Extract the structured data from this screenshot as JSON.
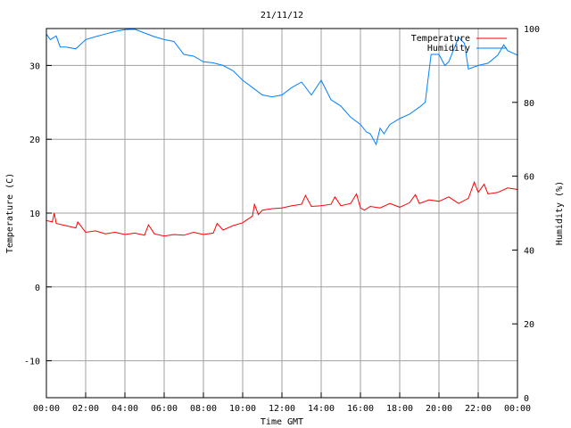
{
  "chart_data": {
    "type": "line",
    "title": "21/11/12",
    "xlabel": "Time GMT",
    "ylabel": "Temperature (C)",
    "y2label": "Humidity (%)",
    "xlim": [
      0,
      24
    ],
    "ylim": [
      -15,
      35
    ],
    "y2lim": [
      0,
      100
    ],
    "grid": true,
    "legend": "top-right",
    "x_ticks": [
      "00:00",
      "02:00",
      "04:00",
      "06:00",
      "08:00",
      "10:00",
      "12:00",
      "14:00",
      "16:00",
      "18:00",
      "20:00",
      "22:00",
      "00:00"
    ],
    "y_ticks": [
      -10,
      0,
      10,
      20,
      30
    ],
    "y2_ticks": [
      0,
      20,
      40,
      60,
      80,
      100
    ],
    "series": [
      {
        "name": "Temperature",
        "axis": "left",
        "color": "#ff0000",
        "x": [
          0,
          0.3,
          0.4,
          0.5,
          1,
          1.5,
          1.6,
          2,
          2.5,
          3,
          3.5,
          4,
          4.5,
          5,
          5.2,
          5.5,
          6,
          6.5,
          7,
          7.5,
          8,
          8.5,
          8.7,
          9,
          9.5,
          10,
          10.5,
          10.6,
          10.8,
          11,
          11.5,
          12,
          12.5,
          13,
          13.2,
          13.5,
          14,
          14.5,
          14.7,
          15,
          15.5,
          15.8,
          16,
          16.2,
          16.5,
          17,
          17.5,
          18,
          18.5,
          18.8,
          19,
          19.5,
          20,
          20.5,
          21,
          21.5,
          21.8,
          22,
          22.3,
          22.5,
          23,
          23.5,
          24
        ],
        "y": [
          9,
          8.8,
          10,
          8.6,
          8.3,
          8,
          8.8,
          7.4,
          7.6,
          7.2,
          7.4,
          7.1,
          7.3,
          7,
          8.4,
          7.2,
          6.9,
          7.1,
          7,
          7.4,
          7.1,
          7.3,
          8.6,
          7.7,
          8.3,
          8.7,
          9.6,
          11.2,
          9.8,
          10.4,
          10.6,
          10.7,
          11,
          11.2,
          12.4,
          10.9,
          11,
          11.2,
          12.2,
          11,
          11.3,
          12.6,
          10.7,
          10.4,
          10.9,
          10.7,
          11.3,
          10.8,
          11.4,
          12.5,
          11.3,
          11.8,
          11.6,
          12.2,
          11.3,
          12,
          14.2,
          12.8,
          13.9,
          12.6,
          12.8,
          13.4,
          13.2
        ]
      },
      {
        "name": "Humidity",
        "axis": "right",
        "color": "#0080ff",
        "x": [
          0,
          0.2,
          0.5,
          0.7,
          1,
          1.5,
          2,
          2.5,
          3,
          3.5,
          4,
          4.5,
          5,
          5.5,
          6,
          6.5,
          7,
          7.5,
          8,
          8.5,
          9,
          9.5,
          10,
          10.5,
          11,
          11.5,
          12,
          12.5,
          13,
          13.5,
          14,
          14.5,
          15,
          15.5,
          16,
          16.3,
          16.5,
          16.8,
          17,
          17.2,
          17.5,
          18,
          18.5,
          19,
          19.3,
          19.6,
          20,
          20.3,
          20.5,
          21,
          21.3,
          21.5,
          22,
          22.5,
          23,
          23.3,
          23.5,
          24
        ],
        "y": [
          98.5,
          97,
          98,
          95,
          95,
          94.5,
          97,
          97.8,
          98.5,
          99.2,
          99.7,
          99.8,
          98.8,
          97.8,
          97,
          96.5,
          93,
          92.5,
          91,
          90.7,
          90,
          88.6,
          86,
          84,
          82,
          81.5,
          82,
          84,
          85.5,
          82,
          86,
          80.7,
          79,
          76,
          74,
          72,
          71.5,
          68.6,
          73,
          71.5,
          74,
          75.6,
          76.8,
          78.7,
          80,
          93,
          93,
          90,
          91,
          97.6,
          96,
          89,
          90,
          90.6,
          92.8,
          95.6,
          94,
          92.8
        ]
      }
    ]
  }
}
